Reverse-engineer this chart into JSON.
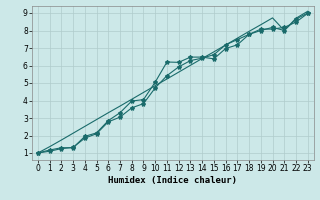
{
  "xlabel": "Humidex (Indice chaleur)",
  "ylabel": "",
  "background_color": "#cce8e8",
  "grid_color": "#b0cccc",
  "line_color": "#1a6b6b",
  "xlim": [
    -0.5,
    23.5
  ],
  "ylim": [
    0.6,
    9.4
  ],
  "xticks": [
    0,
    1,
    2,
    3,
    4,
    5,
    6,
    7,
    8,
    9,
    10,
    11,
    12,
    13,
    14,
    15,
    16,
    17,
    18,
    19,
    20,
    21,
    22,
    23
  ],
  "yticks": [
    1,
    2,
    3,
    4,
    5,
    6,
    7,
    8,
    9
  ],
  "line1_x": [
    0,
    1,
    2,
    3,
    4,
    5,
    6,
    7,
    8,
    9,
    10,
    11,
    12,
    13,
    14,
    15,
    16,
    17,
    18,
    19,
    20,
    21,
    22,
    23
  ],
  "line1_y": [
    1.0,
    1.17,
    1.3,
    1.3,
    1.95,
    2.15,
    2.85,
    3.3,
    3.97,
    4.05,
    5.05,
    6.2,
    6.18,
    6.48,
    6.48,
    6.38,
    6.97,
    7.18,
    7.78,
    8.08,
    8.08,
    8.18,
    8.48,
    8.98
  ],
  "line2_x": [
    0,
    1,
    2,
    3,
    4,
    5,
    6,
    7,
    8,
    9,
    10,
    11,
    12,
    13,
    14,
    15,
    16,
    17,
    18,
    19,
    20,
    21,
    22,
    23
  ],
  "line2_y": [
    1.0,
    1.36,
    1.74,
    2.13,
    2.52,
    2.91,
    3.3,
    3.68,
    4.07,
    4.46,
    4.85,
    5.23,
    5.62,
    6.01,
    6.4,
    6.78,
    7.17,
    7.56,
    7.95,
    8.33,
    8.72,
    8.0,
    8.7,
    9.1
  ],
  "line3_x": [
    0,
    1,
    2,
    3,
    4,
    5,
    6,
    7,
    8,
    9,
    10,
    11,
    12,
    13,
    14,
    15,
    16,
    17,
    18,
    19,
    20,
    21,
    22,
    23
  ],
  "line3_y": [
    1.0,
    1.1,
    1.25,
    1.32,
    1.85,
    2.1,
    2.78,
    3.05,
    3.58,
    3.82,
    4.72,
    5.42,
    5.92,
    6.28,
    6.42,
    6.62,
    7.18,
    7.48,
    7.78,
    8.0,
    8.18,
    8.0,
    8.65,
    9.0
  ],
  "marker_size": 3,
  "line_width": 0.8,
  "tick_fontsize": 5.5,
  "label_fontsize": 6.5
}
